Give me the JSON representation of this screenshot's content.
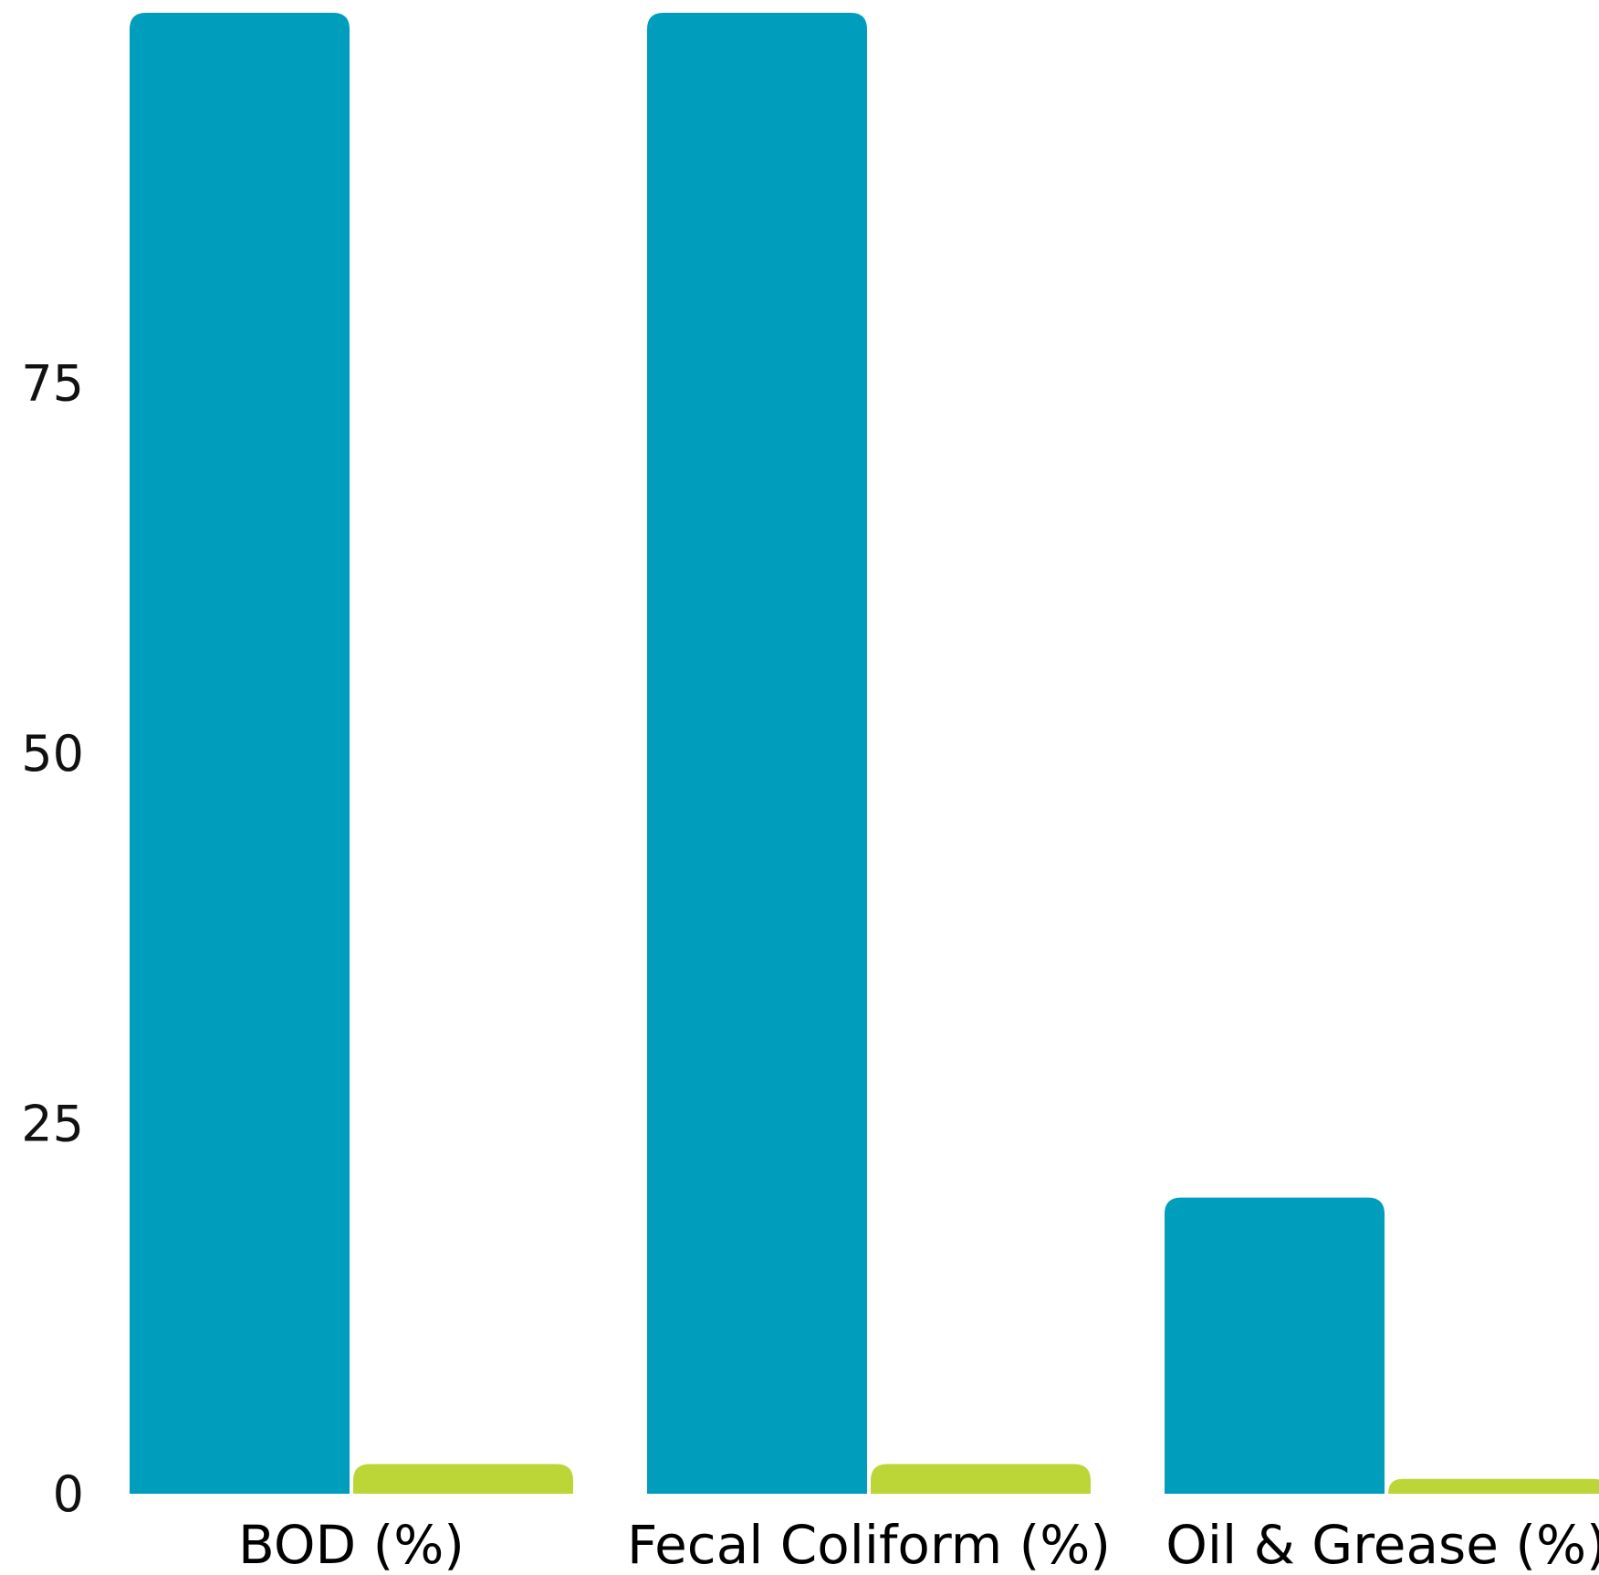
{
  "chart_data": {
    "type": "bar",
    "categories": [
      "BOD (%)",
      "Fecal Coliform (%)",
      "Oil & Grease (%)"
    ],
    "series": [
      {
        "values": [
          100,
          100,
          20
        ],
        "color": "#009dbc"
      },
      {
        "values": [
          2,
          2,
          1
        ],
        "color": "#bdd637"
      }
    ],
    "yticks": [
      0,
      25,
      50,
      75
    ],
    "ytick_labels": [
      "0",
      "25",
      "50",
      "75"
    ],
    "ylim": [
      0,
      100
    ],
    "grid": false,
    "legend": "none"
  }
}
